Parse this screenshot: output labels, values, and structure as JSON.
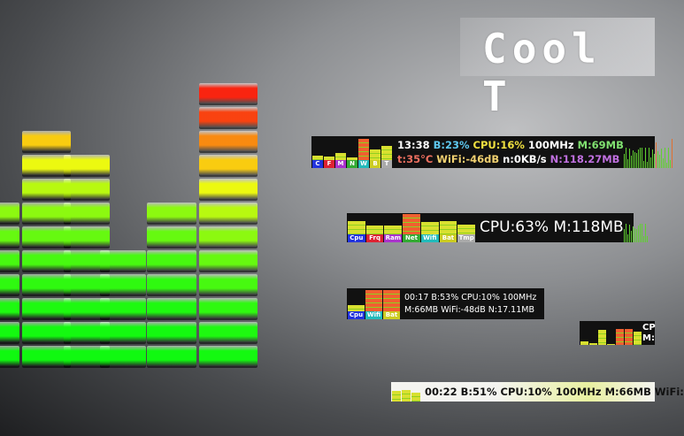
{
  "title": "Cool T",
  "colors": {
    "cpu": "#2233dd",
    "frq": "#dd2233",
    "ram": "#aa33cc",
    "net": "#33aa33",
    "wifi": "#22bbbb",
    "bat": "#cccc22",
    "tmp": "#aaaaaa"
  },
  "equalizer": {
    "column_heights": [
      7,
      10,
      9,
      5,
      7,
      12
    ]
  },
  "widget1": {
    "labels": [
      "C",
      "F",
      "M",
      "N",
      "W",
      "B",
      "T"
    ],
    "levels": [
      0.2,
      0.15,
      0.3,
      0.1,
      0.9,
      0.45,
      0.6
    ],
    "line1": [
      {
        "t": "13:38",
        "c": "#ffffff"
      },
      {
        "t": "B:23%",
        "c": "#5ec8f0"
      },
      {
        "t": "CPU:16%",
        "c": "#f0e040"
      },
      {
        "t": "100MHz",
        "c": "#ffffff"
      },
      {
        "t": "M:69MB",
        "c": "#80e070"
      }
    ],
    "line2": [
      {
        "t": "t:35°C",
        "c": "#f07060"
      },
      {
        "t": "WiFi:-46dB",
        "c": "#f0d070"
      },
      {
        "t": "n:0KB/s",
        "c": "#ffffff"
      },
      {
        "t": "N:118.27MB",
        "c": "#c070e0"
      }
    ]
  },
  "widget2": {
    "labels": [
      "Cpu",
      "Frq",
      "Ram",
      "Net",
      "Wifi",
      "Bat",
      "Tmp"
    ],
    "levels": [
      0.6,
      0.4,
      0.4,
      0.95,
      0.55,
      0.6,
      0.45
    ],
    "text": "CPU:63% M:118MB"
  },
  "widget3": {
    "labels": [
      "Cpu",
      "Wifi",
      "Bat"
    ],
    "levels": [
      0.25,
      0.9,
      0.9
    ],
    "line1": "00:17 B:53% CPU:10% 100MHz",
    "line2": "M:66MB WiFi:-48dB N:17.11MB"
  },
  "widget4": {
    "levels": [
      0.2,
      0.1,
      0.85,
      0.05,
      0.9,
      0.9,
      0.75
    ],
    "text1": "CP",
    "text2": "M:"
  },
  "widget5": {
    "levels": [
      0.7,
      0.8,
      0.6
    ],
    "text": "00:22 B:51% CPU:10% 100MHz M:66MB WiFi:"
  }
}
